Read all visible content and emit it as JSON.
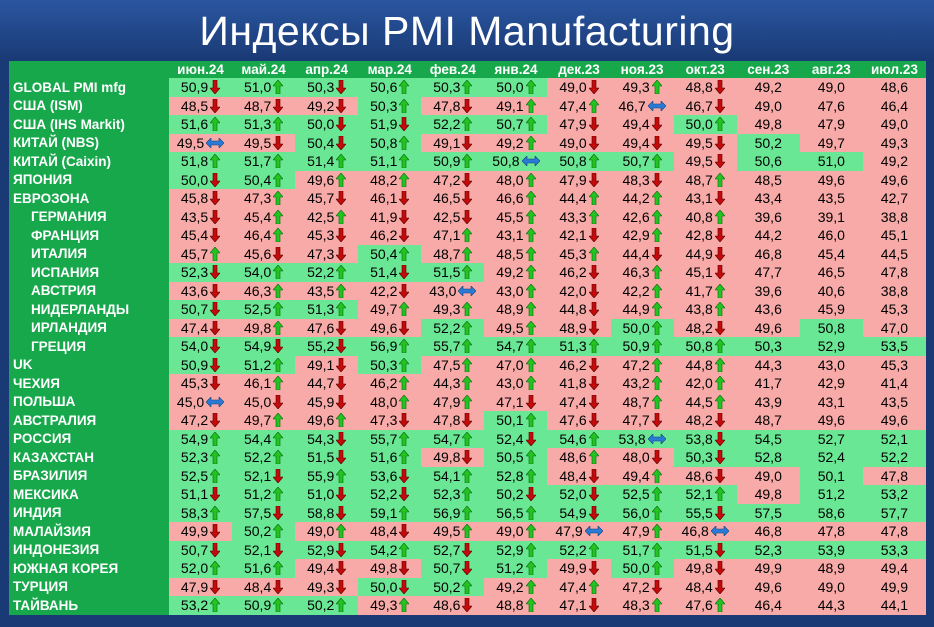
{
  "title": "Индексы PMI Manufacturing",
  "table": {
    "columns": [
      "июн.24",
      "май.24",
      "апр.24",
      "мар.24",
      "фев.24",
      "янв.24",
      "дек.23",
      "ноя.23",
      "окт.23",
      "сен.23",
      "авг.23",
      "июл.23"
    ],
    "rows": [
      {
        "label": "GLOBAL PMI mfg",
        "cells": [
          "50,9",
          "51,0",
          "50,3",
          "50,6",
          "50,3",
          "50,0",
          "49,0",
          "49,3",
          "48,8",
          "49,2",
          "49,0",
          "48,6"
        ]
      },
      {
        "label": "США (ISM)",
        "cells": [
          "48,5",
          "48,7",
          "49,2",
          "50,3",
          "47,8",
          "49,1",
          "47,4",
          "46,7",
          "46,7",
          "49,0",
          "47,6",
          "46,4"
        ]
      },
      {
        "label": "США (IHS Markit)",
        "cells": [
          "51,6",
          "51,3",
          "50,0",
          "51,9",
          "52,2",
          "50,7",
          "47,9",
          "49,4",
          "50,0",
          "49,8",
          "47,9",
          "49,0"
        ]
      },
      {
        "label": "КИТАЙ (NBS)",
        "cells": [
          "49,5",
          "49,5",
          "50,4",
          "50,8",
          "49,1",
          "49,2",
          "49,0",
          "49,4",
          "49,5",
          "50,2",
          "49,7",
          "49,3"
        ]
      },
      {
        "label": "КИТАЙ (Caixin)",
        "cells": [
          "51,8",
          "51,7",
          "51,4",
          "51,1",
          "50,9",
          "50,8",
          "50,8",
          "50,7",
          "49,5",
          "50,6",
          "51,0",
          "49,2"
        ]
      },
      {
        "label": "ЯПОНИЯ",
        "cells": [
          "50,0",
          "50,4",
          "49,6",
          "48,2",
          "47,2",
          "48,0",
          "47,9",
          "48,3",
          "48,7",
          "48,5",
          "49,6",
          "49,6"
        ]
      },
      {
        "label": "ЕВРОЗОНА",
        "cells": [
          "45,8",
          "47,3",
          "45,7",
          "46,1",
          "46,5",
          "46,6",
          "44,4",
          "44,2",
          "43,1",
          "43,4",
          "43,5",
          "42,7"
        ]
      },
      {
        "label": "ГЕРМАНИЯ",
        "indent": true,
        "cells": [
          "43,5",
          "45,4",
          "42,5",
          "41,9",
          "42,5",
          "45,5",
          "43,3",
          "42,6",
          "40,8",
          "39,6",
          "39,1",
          "38,8"
        ]
      },
      {
        "label": "ФРАНЦИЯ",
        "indent": true,
        "cells": [
          "45,4",
          "46,4",
          "45,3",
          "46,2",
          "47,1",
          "43,1",
          "42,1",
          "42,9",
          "42,8",
          "44,2",
          "46,0",
          "45,1"
        ]
      },
      {
        "label": "ИТАЛИЯ",
        "indent": true,
        "cells": [
          "45,7",
          "45,6",
          "47,3",
          "50,4",
          "48,7",
          "48,5",
          "45,3",
          "44,4",
          "44,9",
          "46,8",
          "45,4",
          "44,5"
        ]
      },
      {
        "label": "ИСПАНИЯ",
        "indent": true,
        "cells": [
          "52,3",
          "54,0",
          "52,2",
          "51,4",
          "51,5",
          "49,2",
          "46,2",
          "46,3",
          "45,1",
          "47,7",
          "46,5",
          "47,8"
        ]
      },
      {
        "label": "АВСТРИЯ",
        "indent": true,
        "cells": [
          "43,6",
          "46,3",
          "43,5",
          "42,2",
          "43,0",
          "43,0",
          "42,0",
          "42,2",
          "41,7",
          "39,6",
          "40,6",
          "38,8"
        ]
      },
      {
        "label": "НИДЕРЛАНДЫ",
        "indent": true,
        "cells": [
          "50,7",
          "52,5",
          "51,3",
          "49,7",
          "49,3",
          "48,9",
          "44,8",
          "44,9",
          "43,8",
          "43,6",
          "45,9",
          "45,3"
        ]
      },
      {
        "label": "ИРЛАНДИЯ",
        "indent": true,
        "cells": [
          "47,4",
          "49,8",
          "47,6",
          "49,6",
          "52,2",
          "49,5",
          "48,9",
          "50,0",
          "48,2",
          "49,6",
          "50,8",
          "47,0"
        ]
      },
      {
        "label": "ГРЕЦИЯ",
        "indent": true,
        "cells": [
          "54,0",
          "54,9",
          "55,2",
          "56,9",
          "55,7",
          "54,7",
          "51,3",
          "50,9",
          "50,8",
          "50,3",
          "52,9",
          "53,5"
        ]
      },
      {
        "label": "UK",
        "cells": [
          "50,9",
          "51,2",
          "49,1",
          "50,3",
          "47,5",
          "47,0",
          "46,2",
          "47,2",
          "44,8",
          "44,3",
          "43,0",
          "45,3"
        ]
      },
      {
        "label": "ЧЕХИЯ",
        "cells": [
          "45,3",
          "46,1",
          "44,7",
          "46,2",
          "44,3",
          "43,0",
          "41,8",
          "43,2",
          "42,0",
          "41,7",
          "42,9",
          "41,4"
        ]
      },
      {
        "label": "ПОЛЬША",
        "cells": [
          "45,0",
          "45,0",
          "45,9",
          "48,0",
          "47,9",
          "47,1",
          "47,4",
          "48,7",
          "44,5",
          "43,9",
          "43,1",
          "43,5"
        ]
      },
      {
        "label": "АВСТРАЛИЯ",
        "cells": [
          "47,2",
          "49,7",
          "49,6",
          "47,3",
          "47,8",
          "50,1",
          "47,6",
          "47,7",
          "48,2",
          "48,7",
          "49,6",
          "49,6"
        ]
      },
      {
        "label": "РОССИЯ",
        "cells": [
          "54,9",
          "54,4",
          "54,3",
          "55,7",
          "54,7",
          "52,4",
          "54,6",
          "53,8",
          "53,8",
          "54,5",
          "52,7",
          "52,1"
        ]
      },
      {
        "label": "КАЗАХСТАН",
        "cells": [
          "52,3",
          "52,2",
          "51,5",
          "51,6",
          "49,8",
          "50,5",
          "48,6",
          "48,0",
          "50,3",
          "52,8",
          "52,4",
          "52,2"
        ]
      },
      {
        "label": "БРАЗИЛИЯ",
        "cells": [
          "52,5",
          "52,1",
          "55,9",
          "53,6",
          "54,1",
          "52,8",
          "48,4",
          "49,4",
          "48,6",
          "49,0",
          "50,1",
          "47,8"
        ]
      },
      {
        "label": "МЕКСИКА",
        "cells": [
          "51,1",
          "51,2",
          "51,0",
          "52,2",
          "52,3",
          "50,2",
          "52,0",
          "52,5",
          "52,1",
          "49,8",
          "51,2",
          "53,2"
        ]
      },
      {
        "label": "ИНДИЯ",
        "cells": [
          "58,3",
          "57,5",
          "58,8",
          "59,1",
          "56,9",
          "56,5",
          "54,9",
          "56,0",
          "55,5",
          "57,5",
          "58,6",
          "57,7"
        ]
      },
      {
        "label": "МАЛАЙЗИЯ",
        "cells": [
          "49,9",
          "50,2",
          "49,0",
          "48,4",
          "49,5",
          "49,0",
          "47,9",
          "47,9",
          "46,8",
          "46,8",
          "47,8",
          "47,8"
        ]
      },
      {
        "label": "ИНДОНЕЗИЯ",
        "cells": [
          "50,7",
          "52,1",
          "52,9",
          "54,2",
          "52,7",
          "52,9",
          "52,2",
          "51,7",
          "51,5",
          "52,3",
          "53,9",
          "53,3"
        ]
      },
      {
        "label": "ЮЖНАЯ КОРЕЯ",
        "cells": [
          "52,0",
          "51,6",
          "49,4",
          "49,8",
          "50,7",
          "51,2",
          "49,9",
          "50,0",
          "49,8",
          "49,9",
          "48,9",
          "49,4"
        ]
      },
      {
        "label": "ТУРЦИЯ",
        "cells": [
          "47,9",
          "48,4",
          "49,3",
          "50,0",
          "50,2",
          "49,2",
          "47,4",
          "47,2",
          "48,4",
          "49,6",
          "49,0",
          "49,9"
        ]
      },
      {
        "label": "ТАЙВАНЬ",
        "cells": [
          "53,2",
          "50,9",
          "50,2",
          "49,3",
          "48,6",
          "48,8",
          "47,1",
          "48,3",
          "47,6",
          "46,4",
          "44,3",
          "44,1"
        ]
      }
    ]
  }
}
